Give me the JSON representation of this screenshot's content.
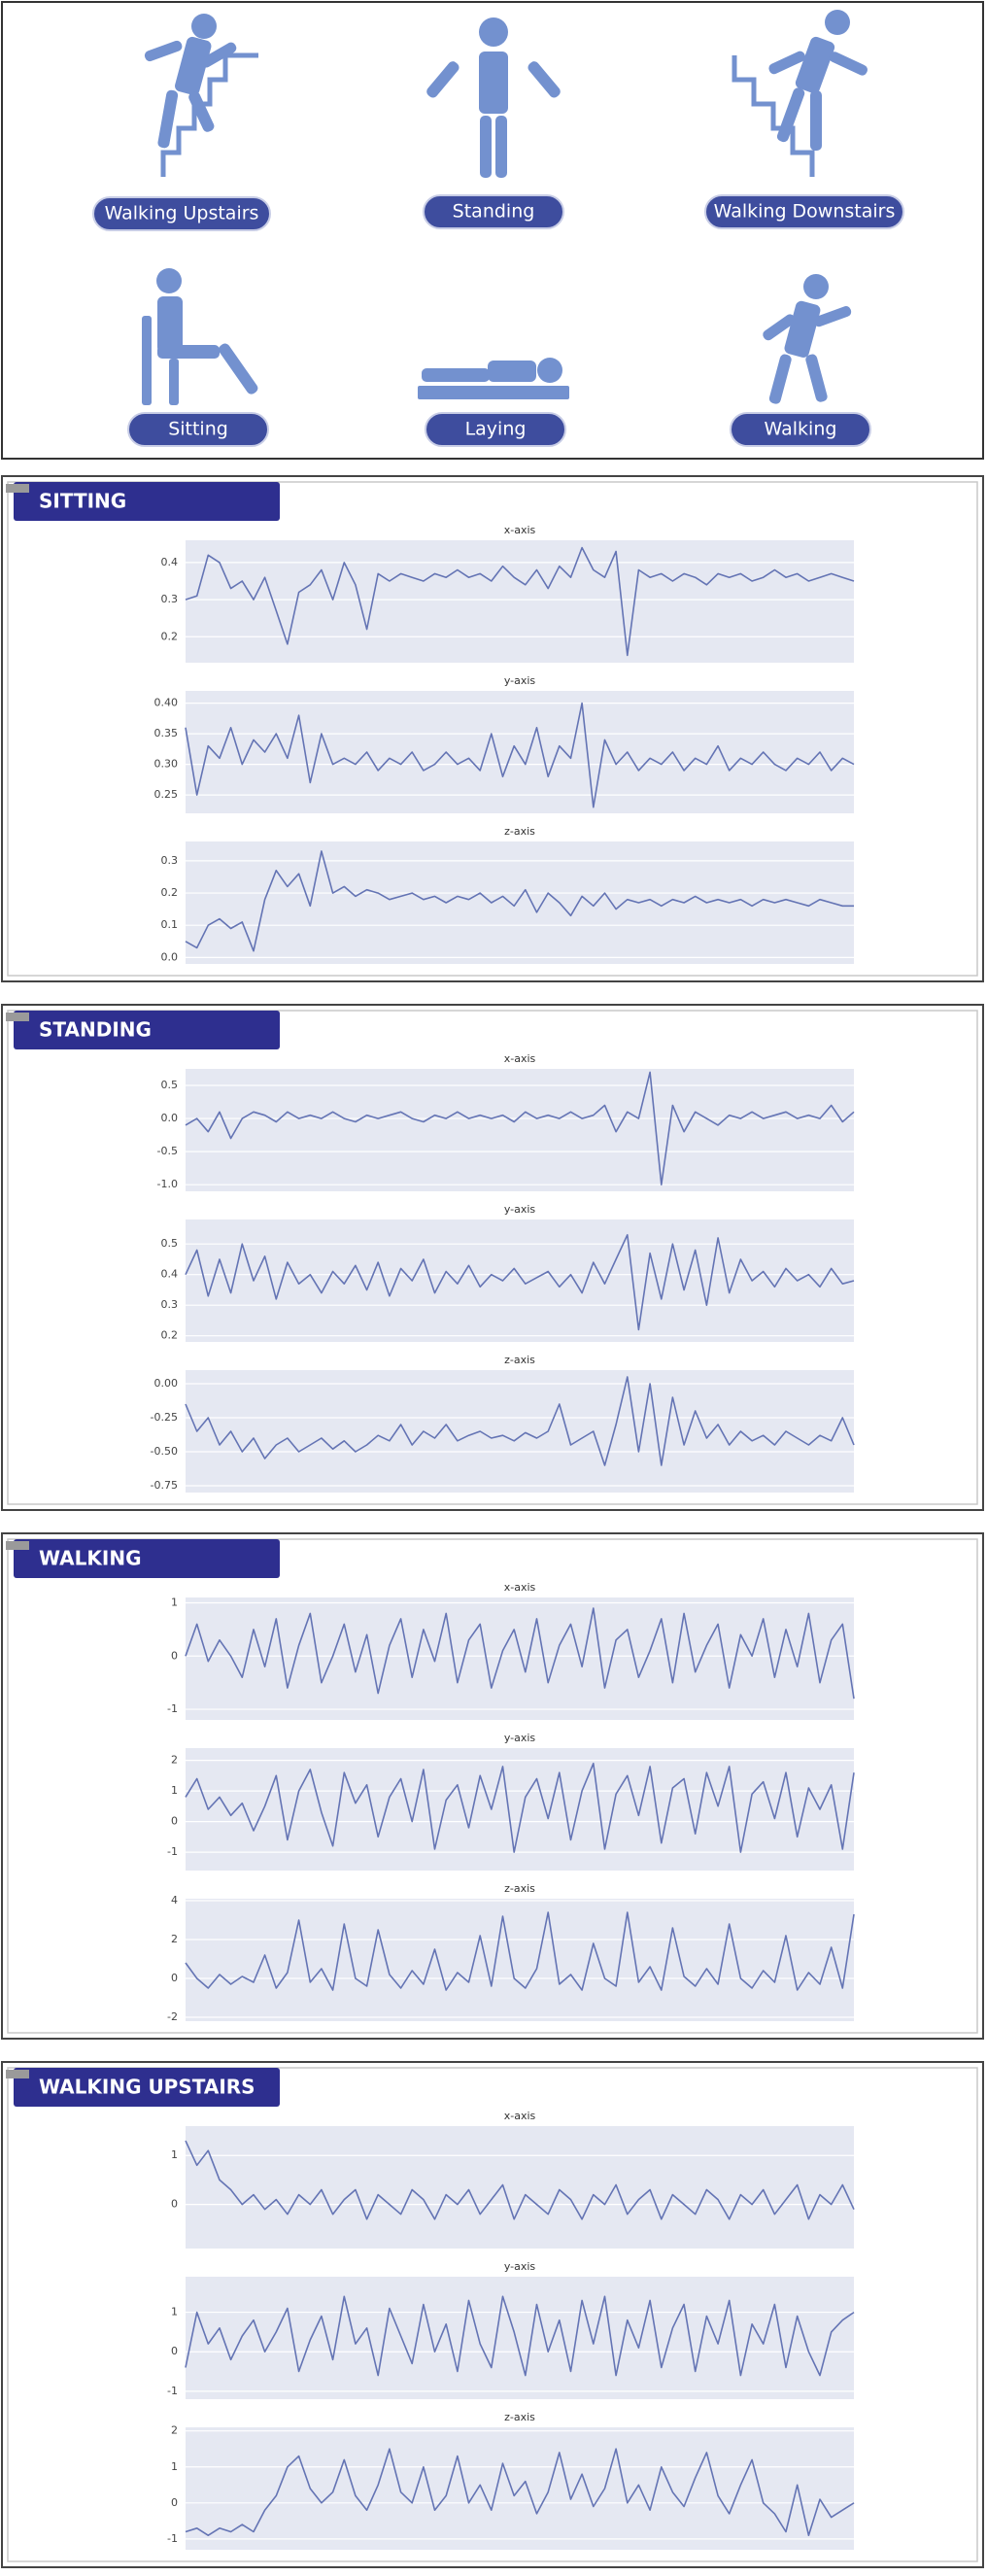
{
  "activities": [
    "Walking Upstairs",
    "Standing",
    "Walking Downstairs",
    "Sitting",
    "Laying",
    "Walking"
  ],
  "sections": [
    {
      "title": "SITTING",
      "chart_data": [
        {
          "type": "line",
          "title": "x-axis",
          "color": "#6474b4",
          "ylim": [
            0.13,
            0.46
          ],
          "yticks": [
            0.2,
            0.3,
            0.4
          ],
          "grid": true,
          "values": [
            0.3,
            0.31,
            0.42,
            0.4,
            0.33,
            0.35,
            0.3,
            0.36,
            0.27,
            0.18,
            0.32,
            0.34,
            0.38,
            0.3,
            0.4,
            0.34,
            0.22,
            0.37,
            0.35,
            0.37,
            0.36,
            0.35,
            0.37,
            0.36,
            0.38,
            0.36,
            0.37,
            0.35,
            0.39,
            0.36,
            0.34,
            0.38,
            0.33,
            0.39,
            0.36,
            0.44,
            0.38,
            0.36,
            0.43,
            0.15,
            0.38,
            0.36,
            0.37,
            0.35,
            0.37,
            0.36,
            0.34,
            0.37,
            0.36,
            0.37,
            0.35,
            0.36,
            0.38,
            0.36,
            0.37,
            0.35,
            0.36,
            0.37,
            0.36,
            0.35
          ]
        },
        {
          "type": "line",
          "title": "y-axis",
          "color": "#6474b4",
          "ylim": [
            0.22,
            0.42
          ],
          "yticks": [
            0.25,
            {
              "value": 0.3,
              "label": "0.30"
            },
            0.35,
            {
              "value": 0.4,
              "label": "0.40"
            }
          ],
          "grid": true,
          "values": [
            0.36,
            0.25,
            0.33,
            0.31,
            0.36,
            0.3,
            0.34,
            0.32,
            0.35,
            0.31,
            0.38,
            0.27,
            0.35,
            0.3,
            0.31,
            0.3,
            0.32,
            0.29,
            0.31,
            0.3,
            0.32,
            0.29,
            0.3,
            0.32,
            0.3,
            0.31,
            0.29,
            0.35,
            0.28,
            0.33,
            0.3,
            0.36,
            0.28,
            0.33,
            0.31,
            0.4,
            0.23,
            0.34,
            0.3,
            0.32,
            0.29,
            0.31,
            0.3,
            0.32,
            0.29,
            0.31,
            0.3,
            0.33,
            0.29,
            0.31,
            0.3,
            0.32,
            0.3,
            0.29,
            0.31,
            0.3,
            0.32,
            0.29,
            0.31,
            0.3
          ]
        },
        {
          "type": "line",
          "title": "z-axis",
          "color": "#6474b4",
          "ylim": [
            -0.02,
            0.36
          ],
          "yticks": [
            {
              "value": 0,
              "label": "0.0"
            },
            0.1,
            0.2,
            0.3
          ],
          "grid": true,
          "values": [
            0.05,
            0.03,
            0.1,
            0.12,
            0.09,
            0.11,
            0.02,
            0.18,
            0.27,
            0.22,
            0.26,
            0.16,
            0.33,
            0.2,
            0.22,
            0.19,
            0.21,
            0.2,
            0.18,
            0.19,
            0.2,
            0.18,
            0.19,
            0.17,
            0.19,
            0.18,
            0.2,
            0.17,
            0.19,
            0.16,
            0.21,
            0.14,
            0.2,
            0.17,
            0.13,
            0.19,
            0.16,
            0.2,
            0.15,
            0.18,
            0.17,
            0.18,
            0.16,
            0.18,
            0.17,
            0.19,
            0.17,
            0.18,
            0.17,
            0.18,
            0.16,
            0.18,
            0.17,
            0.18,
            0.17,
            0.16,
            0.18,
            0.17,
            0.16,
            0.16
          ]
        }
      ]
    },
    {
      "title": "STANDING",
      "chart_data": [
        {
          "type": "line",
          "title": "x-axis",
          "color": "#6474b4",
          "ylim": [
            -1.1,
            0.75
          ],
          "yticks": [
            0.5,
            {
              "value": 0,
              "label": "0.0"
            },
            -0.5,
            {
              "value": -1,
              "label": "-1.0"
            }
          ],
          "grid": true,
          "values": [
            -0.1,
            0.0,
            -0.2,
            0.1,
            -0.3,
            0.0,
            0.1,
            0.05,
            -0.05,
            0.1,
            0.0,
            0.05,
            0.0,
            0.1,
            0.0,
            -0.05,
            0.05,
            0.0,
            0.05,
            0.1,
            0.0,
            -0.05,
            0.05,
            0.0,
            0.1,
            0.0,
            0.05,
            0.0,
            0.05,
            -0.05,
            0.1,
            0.0,
            0.05,
            0.0,
            0.1,
            0.0,
            0.05,
            0.2,
            -0.2,
            0.1,
            0.0,
            0.7,
            -1.0,
            0.2,
            -0.2,
            0.1,
            0.0,
            -0.1,
            0.05,
            0.0,
            0.1,
            0.0,
            0.05,
            0.1,
            0.0,
            0.05,
            0.0,
            0.2,
            -0.05,
            0.1
          ]
        },
        {
          "type": "line",
          "title": "y-axis",
          "color": "#6474b4",
          "ylim": [
            0.18,
            0.58
          ],
          "yticks": [
            0.2,
            0.3,
            0.4,
            0.5
          ],
          "grid": true,
          "values": [
            0.4,
            0.48,
            0.33,
            0.45,
            0.34,
            0.5,
            0.38,
            0.46,
            0.32,
            0.44,
            0.37,
            0.4,
            0.34,
            0.41,
            0.37,
            0.43,
            0.35,
            0.44,
            0.33,
            0.42,
            0.38,
            0.45,
            0.34,
            0.41,
            0.37,
            0.43,
            0.36,
            0.4,
            0.38,
            0.42,
            0.37,
            0.39,
            0.41,
            0.36,
            0.4,
            0.34,
            0.44,
            0.37,
            0.45,
            0.53,
            0.22,
            0.47,
            0.32,
            0.5,
            0.35,
            0.48,
            0.3,
            0.52,
            0.34,
            0.45,
            0.38,
            0.41,
            0.36,
            0.42,
            0.38,
            0.4,
            0.36,
            0.42,
            0.37,
            0.38
          ]
        },
        {
          "type": "line",
          "title": "z-axis",
          "color": "#6474b4",
          "ylim": [
            -0.8,
            0.1
          ],
          "yticks": [
            {
              "value": 0,
              "label": "0.00"
            },
            -0.25,
            {
              "value": -0.5,
              "label": "-0.50"
            },
            -0.75
          ],
          "grid": true,
          "values": [
            -0.15,
            -0.35,
            -0.25,
            -0.45,
            -0.35,
            -0.5,
            -0.4,
            -0.55,
            -0.45,
            -0.4,
            -0.5,
            -0.45,
            -0.4,
            -0.48,
            -0.42,
            -0.5,
            -0.45,
            -0.38,
            -0.42,
            -0.3,
            -0.45,
            -0.35,
            -0.4,
            -0.3,
            -0.42,
            -0.38,
            -0.35,
            -0.4,
            -0.38,
            -0.42,
            -0.36,
            -0.4,
            -0.35,
            -0.15,
            -0.45,
            -0.4,
            -0.35,
            -0.6,
            -0.3,
            0.05,
            -0.5,
            0.0,
            -0.6,
            -0.1,
            -0.45,
            -0.2,
            -0.4,
            -0.3,
            -0.45,
            -0.35,
            -0.42,
            -0.38,
            -0.45,
            -0.35,
            -0.4,
            -0.45,
            -0.38,
            -0.42,
            -0.25,
            -0.45
          ]
        }
      ]
    },
    {
      "title": "WALKING",
      "chart_data": [
        {
          "type": "line",
          "title": "x-axis",
          "color": "#6474b4",
          "ylim": [
            -1.2,
            1.1
          ],
          "yticks": [
            1,
            0,
            -1
          ],
          "grid": true,
          "values": [
            0.0,
            0.6,
            -0.1,
            0.3,
            0.0,
            -0.4,
            0.5,
            -0.2,
            0.7,
            -0.6,
            0.2,
            0.8,
            -0.5,
            0.0,
            0.6,
            -0.3,
            0.4,
            -0.7,
            0.2,
            0.7,
            -0.4,
            0.5,
            -0.1,
            0.8,
            -0.5,
            0.3,
            0.6,
            -0.6,
            0.1,
            0.5,
            -0.3,
            0.7,
            -0.5,
            0.2,
            0.6,
            -0.2,
            0.9,
            -0.6,
            0.3,
            0.5,
            -0.4,
            0.1,
            0.7,
            -0.5,
            0.8,
            -0.3,
            0.2,
            0.6,
            -0.6,
            0.4,
            0.0,
            0.7,
            -0.4,
            0.5,
            -0.2,
            0.8,
            -0.5,
            0.3,
            0.6,
            -0.8
          ]
        },
        {
          "type": "line",
          "title": "y-axis",
          "color": "#6474b4",
          "ylim": [
            -1.6,
            2.4
          ],
          "yticks": [
            2,
            1,
            0,
            -1
          ],
          "grid": true,
          "values": [
            0.8,
            1.4,
            0.4,
            0.8,
            0.2,
            0.6,
            -0.3,
            0.5,
            1.5,
            -0.6,
            1.0,
            1.7,
            0.3,
            -0.8,
            1.6,
            0.6,
            1.2,
            -0.5,
            0.8,
            1.4,
            0.0,
            1.7,
            -0.9,
            0.7,
            1.2,
            -0.2,
            1.5,
            0.4,
            1.8,
            -1.0,
            0.8,
            1.4,
            0.1,
            1.6,
            -0.6,
            1.0,
            1.9,
            -0.9,
            0.9,
            1.5,
            0.2,
            1.8,
            -0.7,
            1.1,
            1.4,
            -0.4,
            1.6,
            0.5,
            1.8,
            -1.0,
            0.9,
            1.3,
            0.1,
            1.6,
            -0.5,
            1.1,
            0.4,
            1.2,
            -0.9,
            1.6
          ]
        },
        {
          "type": "line",
          "title": "z-axis",
          "color": "#6474b4",
          "ylim": [
            -2.2,
            4.1
          ],
          "yticks": [
            4,
            2,
            0,
            -2
          ],
          "grid": true,
          "values": [
            0.8,
            0.0,
            -0.5,
            0.2,
            -0.3,
            0.1,
            -0.2,
            1.2,
            -0.5,
            0.3,
            3.0,
            -0.2,
            0.5,
            -0.6,
            2.8,
            0.0,
            -0.4,
            2.5,
            0.2,
            -0.5,
            0.4,
            -0.3,
            1.5,
            -0.6,
            0.3,
            -0.2,
            2.2,
            -0.4,
            3.2,
            0.0,
            -0.5,
            0.5,
            3.4,
            -0.3,
            0.2,
            -0.6,
            1.8,
            0.0,
            -0.4,
            3.4,
            -0.2,
            0.6,
            -0.6,
            2.6,
            0.1,
            -0.4,
            0.5,
            -0.3,
            2.8,
            0.0,
            -0.5,
            0.4,
            -0.2,
            2.2,
            -0.6,
            0.3,
            -0.3,
            1.6,
            -0.5,
            3.3
          ]
        }
      ]
    },
    {
      "title": "WALKING UPSTAIRS",
      "chart_data": [
        {
          "type": "line",
          "title": "x-axis",
          "color": "#6474b4",
          "ylim": [
            -0.9,
            1.6
          ],
          "yticks": [
            1,
            0
          ],
          "grid": true,
          "values": [
            1.3,
            0.8,
            1.1,
            0.5,
            0.3,
            0.0,
            0.2,
            -0.1,
            0.1,
            -0.2,
            0.2,
            0.0,
            0.3,
            -0.2,
            0.1,
            0.3,
            -0.3,
            0.2,
            0.0,
            -0.2,
            0.3,
            0.1,
            -0.3,
            0.2,
            0.0,
            0.3,
            -0.2,
            0.1,
            0.4,
            -0.3,
            0.2,
            0.0,
            -0.2,
            0.3,
            0.1,
            -0.3,
            0.2,
            0.0,
            0.4,
            -0.2,
            0.1,
            0.3,
            -0.3,
            0.2,
            0.0,
            -0.2,
            0.3,
            0.1,
            -0.3,
            0.2,
            0.0,
            0.3,
            -0.2,
            0.1,
            0.4,
            -0.3,
            0.2,
            0.0,
            0.4,
            -0.1
          ]
        },
        {
          "type": "line",
          "title": "y-axis",
          "color": "#6474b4",
          "ylim": [
            -1.2,
            1.9
          ],
          "yticks": [
            1,
            0,
            -1
          ],
          "grid": true,
          "values": [
            -0.4,
            1.0,
            0.2,
            0.6,
            -0.2,
            0.4,
            0.8,
            0.0,
            0.5,
            1.1,
            -0.5,
            0.3,
            0.9,
            -0.2,
            1.4,
            0.2,
            0.6,
            -0.6,
            1.1,
            0.4,
            -0.3,
            1.2,
            0.0,
            0.7,
            -0.5,
            1.3,
            0.2,
            -0.4,
            1.4,
            0.5,
            -0.6,
            1.2,
            0.0,
            0.8,
            -0.5,
            1.3,
            0.2,
            1.4,
            -0.6,
            0.8,
            0.1,
            1.3,
            -0.4,
            0.6,
            1.2,
            -0.5,
            0.9,
            0.2,
            1.3,
            -0.6,
            0.7,
            0.2,
            1.2,
            -0.4,
            0.9,
            0.0,
            -0.6,
            0.5,
            0.8,
            1.0
          ]
        },
        {
          "type": "line",
          "title": "z-axis",
          "color": "#6474b4",
          "ylim": [
            -1.3,
            2.1
          ],
          "yticks": [
            2,
            1,
            0,
            -1
          ],
          "grid": true,
          "values": [
            -0.8,
            -0.7,
            -0.9,
            -0.7,
            -0.8,
            -0.6,
            -0.8,
            -0.2,
            0.2,
            1.0,
            1.3,
            0.4,
            0.0,
            0.3,
            1.2,
            0.2,
            -0.2,
            0.5,
            1.5,
            0.3,
            0.0,
            1.0,
            -0.2,
            0.2,
            1.3,
            0.0,
            0.5,
            -0.2,
            1.1,
            0.2,
            0.6,
            -0.3,
            0.3,
            1.4,
            0.1,
            0.8,
            -0.1,
            0.4,
            1.5,
            0.0,
            0.5,
            -0.2,
            1.0,
            0.3,
            -0.1,
            0.7,
            1.4,
            0.2,
            -0.3,
            0.5,
            1.2,
            0.0,
            -0.3,
            -0.8,
            0.5,
            -0.9,
            0.1,
            -0.4,
            -0.2,
            0.0
          ]
        }
      ]
    }
  ]
}
